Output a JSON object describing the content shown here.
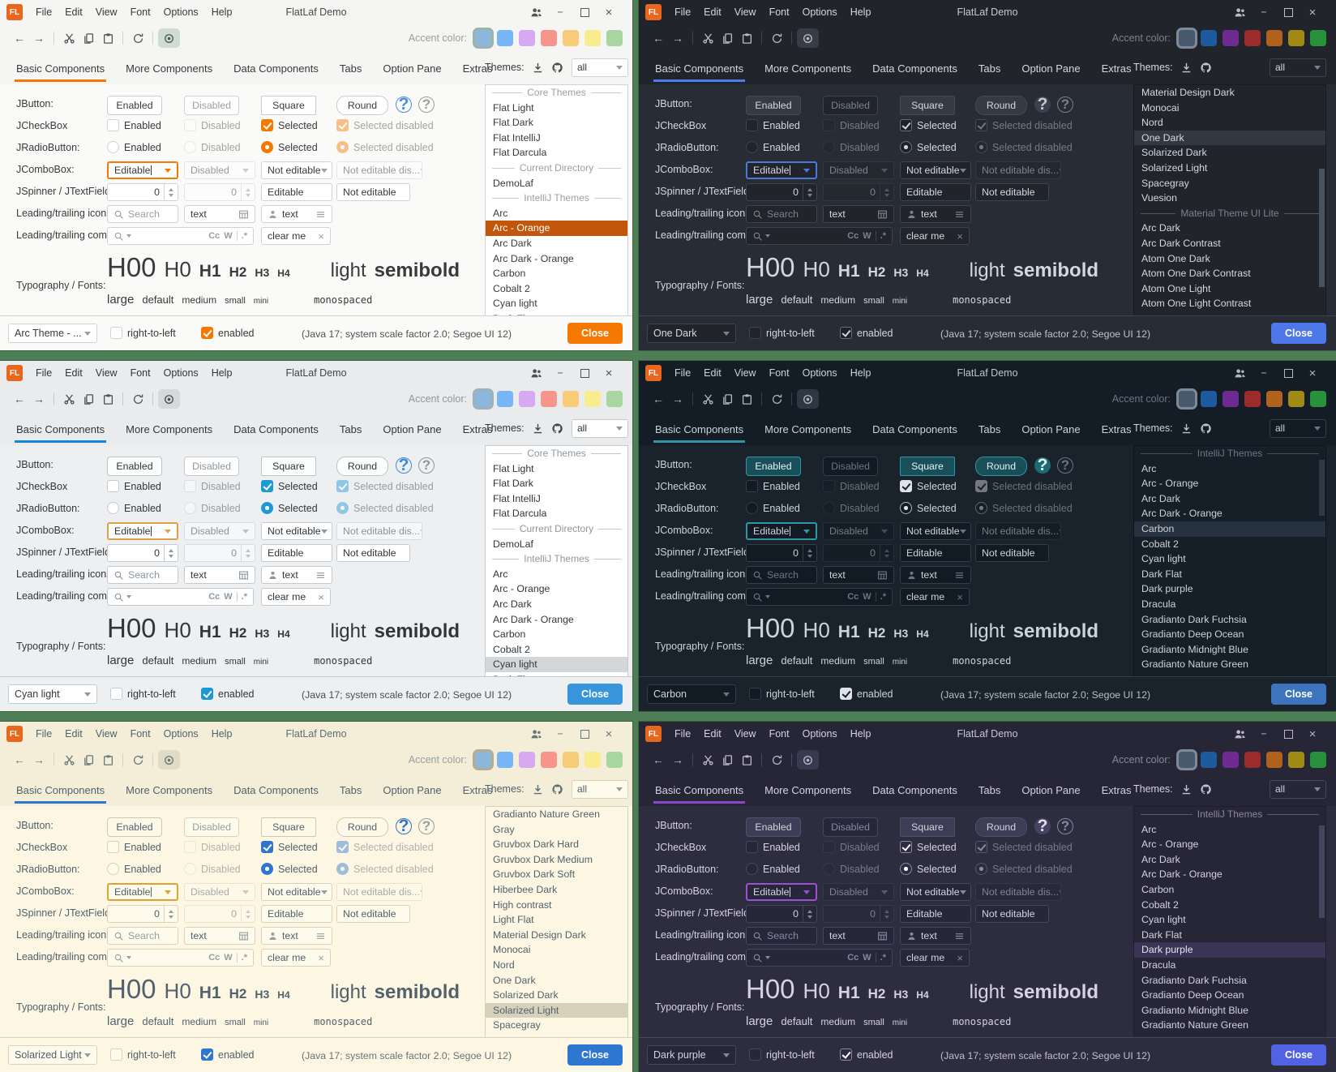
{
  "shared": {
    "logo": "FL",
    "title": "FlatLaf Demo",
    "menus": [
      "File",
      "Edit",
      "View",
      "Font",
      "Options",
      "Help"
    ],
    "toolbar": {
      "accent_label": "Accent color:"
    },
    "tabs": [
      "Basic Components",
      "More Components",
      "Data Components",
      "Tabs",
      "Option Pane",
      "Extras"
    ],
    "themes_label": "Themes:",
    "filter_value": "all",
    "help_glyph": "?",
    "glyphs": {
      "arrow_left": "←",
      "arrow_right": "→",
      "cut": "✂",
      "minimize": "−",
      "close": "×",
      "clear_x": "×"
    },
    "swatches": {
      "light": [
        "#8cb6da",
        "#77b5f7",
        "#d7a9f2",
        "#f7958d",
        "#f8cb79",
        "#f9ec8f",
        "#a7d6a0"
      ],
      "dark": [
        "#48596d",
        "#1d5a9e",
        "#6e2b91",
        "#9c2b2b",
        "#b0611b",
        "#a08c14",
        "#27913c"
      ]
    },
    "rows": {
      "jbutton": {
        "label": "JButton:",
        "buttons": [
          "Enabled",
          "Disabled",
          "Square",
          "Round"
        ]
      },
      "jcheckbox": {
        "label": "JCheckBox",
        "items": [
          "Enabled",
          "Disabled",
          "Selected",
          "Selected disabled"
        ]
      },
      "jradio": {
        "label": "JRadioButton:",
        "items": [
          "Enabled",
          "Disabled",
          "Selected",
          "Selected disabled"
        ]
      },
      "jcombo": {
        "label": "JComboBox:",
        "items": [
          "Editable",
          "Disabled",
          "Not editable",
          "Not editable dis..."
        ]
      },
      "jspinner": {
        "label": "JSpinner / JTextField:",
        "value": "0",
        "field1": "Editable",
        "field2": "Not editable"
      },
      "icons_row": {
        "label": "Leading/trailing icons:",
        "search_placeholder": "Search",
        "text1": "text",
        "text2": "text"
      },
      "comp_row": {
        "label": "Leading/trailing comp.:",
        "match_case": "Cc",
        "words": "W",
        "regex": ".*",
        "clear": "clear me"
      },
      "typography": {
        "label": "Typography / Fonts:",
        "headings": [
          "H00",
          "H0",
          "H1",
          "H2",
          "H3",
          "H4"
        ],
        "weights": [
          "light",
          "semibold"
        ],
        "sizes": [
          "large",
          "default",
          "medium",
          "small",
          "mini"
        ],
        "mono": "monospaced"
      }
    },
    "bottom": {
      "rtl": "right-to-left",
      "enabled": "enabled",
      "info": "(Java 17;  system scale factor 2.0; Segoe UI 12)",
      "close": "Close"
    }
  },
  "windows": [
    {
      "id": "arc-orange",
      "theme_value": "Arc Theme - ...",
      "swatch_set": "light",
      "colors": {
        "bg": "#fafaf9",
        "tb": "#f5f5f4",
        "tx": "#3a3a3a",
        "mut": "#9e9e9e",
        "bd": "#d2d2d0",
        "fld": "#ffffff",
        "btn": "#ffffff",
        "btnbd": "#cccccb",
        "foc": "#f57900",
        "tab": "#f57900",
        "cbg": "#f57900",
        "cmk": "#ffffff",
        "cbd": "#f57900",
        "rbg": "#f57900",
        "rdt": "#ffffff",
        "rbd": "#f57900",
        "selbg": "#c2570c",
        "selfg": "#ffffff",
        "lbg": "#ffffff",
        "lbd": "#d2d2d0",
        "eye": "#c9d8cf",
        "clbg": "#f57900",
        "clfg": "#ffffff",
        "hbg": "transparent",
        "hbd": "#4c8fdd",
        "hfg": "#4c8fdd",
        "thm": "#c8c8c6",
        "ring": "#9bb3ab"
      },
      "list": [
        {
          "sep": "Core Themes"
        },
        {
          "label": "Flat Light"
        },
        {
          "label": "Flat Dark"
        },
        {
          "label": "Flat IntelliJ"
        },
        {
          "label": "Flat Darcula"
        },
        {
          "sep": "Current Directory"
        },
        {
          "label": "DemoLaf"
        },
        {
          "sep": "IntelliJ Themes"
        },
        {
          "label": "Arc"
        },
        {
          "label": "Arc - Orange",
          "selected": true
        },
        {
          "label": "Arc Dark"
        },
        {
          "label": "Arc Dark - Orange"
        },
        {
          "label": "Carbon"
        },
        {
          "label": "Cobalt 2"
        },
        {
          "label": "Cyan light"
        },
        {
          "label": "Dark Flat"
        }
      ],
      "scrollbar": null
    },
    {
      "id": "one-dark",
      "theme_value": "One Dark",
      "swatch_set": "dark",
      "colors": {
        "bg": "#282c34",
        "tb": "#21252b",
        "tx": "#d3d8e0",
        "mut": "#7b818d",
        "bd": "#3d4450",
        "fld": "#21252b",
        "btn": "#353b45",
        "btnbd": "#404a5a",
        "foc": "#4c78d8",
        "tab": "#4a7cf0",
        "cbg": "#1d2128",
        "cmk": "#cfd4dc",
        "cbd": "#666e7e",
        "rbg": "#1d2128",
        "rdt": "#cfd4dc",
        "rbd": "#666e7e",
        "selbg": "#323842",
        "selfg": "#d3d8e0",
        "lbg": "#21252b",
        "lbd": "#181a1f",
        "eye": "#3b414d",
        "clbg": "#4e78ea",
        "clfg": "#ffffff",
        "hbg": "#3b414d",
        "hfg": "#c3c9d4",
        "thm": "#4a5260",
        "ring": "#7e8a99"
      },
      "list": [
        {
          "label": "Material Design Dark"
        },
        {
          "label": "Monocai"
        },
        {
          "label": "Nord"
        },
        {
          "label": "One Dark",
          "selected": true
        },
        {
          "label": "Solarized Dark"
        },
        {
          "label": "Solarized Light"
        },
        {
          "label": "Spacegray"
        },
        {
          "label": "Vuesion"
        },
        {
          "sep": "Material Theme UI Lite"
        },
        {
          "label": "Arc Dark"
        },
        {
          "label": "Arc Dark Contrast"
        },
        {
          "label": "Atom One Dark"
        },
        {
          "label": "Atom One Dark Contrast"
        },
        {
          "label": "Atom One Light"
        },
        {
          "label": "Atom One Light Contrast"
        }
      ],
      "scrollbar": {
        "top_pct": 36,
        "height_pct": 51
      }
    },
    {
      "id": "cyan-light",
      "theme_value": "Cyan light",
      "swatch_set": "light",
      "colors": {
        "bg": "#edeff1",
        "tb": "#e9ebed",
        "tx": "#30363a",
        "mut": "#8f979c",
        "bd": "#c4cbd0",
        "fld": "#ffffff",
        "btn": "#fcfdfd",
        "btnbd": "#bcc4ca",
        "foc": "#dfa048",
        "tab": "#1286d8",
        "cbg": "#1c99d5",
        "cmk": "#ffffff",
        "cbd": "#1c99d5",
        "rbg": "#1c99d5",
        "rdt": "#ffffff",
        "rbd": "#1c99d5",
        "selbg": "#d4d7d9",
        "selfg": "#30363a",
        "lbg": "#ffffff",
        "lbd": "#c4cbd0",
        "eye": "#d2d6d9",
        "clbg": "#3895dc",
        "clfg": "#ffffff",
        "hbg": "transparent",
        "hbd": "#3d8ed8",
        "hfg": "#3d8ed8",
        "thm": "#c4cbd0",
        "ring": "#9fb0b8"
      },
      "list": [
        {
          "sep": "Core Themes"
        },
        {
          "label": "Flat Light"
        },
        {
          "label": "Flat Dark"
        },
        {
          "label": "Flat IntelliJ"
        },
        {
          "label": "Flat Darcula"
        },
        {
          "sep": "Current Directory"
        },
        {
          "label": "DemoLaf"
        },
        {
          "sep": "IntelliJ Themes"
        },
        {
          "label": "Arc"
        },
        {
          "label": "Arc - Orange"
        },
        {
          "label": "Arc Dark"
        },
        {
          "label": "Arc Dark - Orange"
        },
        {
          "label": "Carbon"
        },
        {
          "label": "Cobalt 2"
        },
        {
          "label": "Cyan light",
          "selected": true
        },
        {
          "label": "Dark Flat"
        }
      ],
      "scrollbar": null
    },
    {
      "id": "carbon",
      "theme_value": "Carbon",
      "swatch_set": "dark",
      "colors": {
        "bg": "#1a222c",
        "tb": "#141c25",
        "tx": "#ccd3da",
        "mut": "#6b7683",
        "bd": "#333e49",
        "fld": "#121a23",
        "btn": "#184f58",
        "btnbd": "#2e97a2",
        "btnfg": "#e8f2f4",
        "foc": "#2e97a2",
        "tab": "#2e97a2",
        "cbg": "#dde3e8",
        "cmk": "#16202a",
        "cbd": "#dde3e8",
        "rbg": "#121a23",
        "rdt": "#dde3e8",
        "rbd": "#aab5bf",
        "selbg": "#273240",
        "selfg": "#ccd3da",
        "lbg": "#161e28",
        "lbd": "#0e141c",
        "eye": "#333d48",
        "clbg": "#3e74be",
        "clfg": "#ffffff",
        "hbg": "#1d6a74",
        "hfg": "#e2f4f6",
        "thm": "#2e3a46",
        "ring": "#7e8a99"
      },
      "list": [
        {
          "sep": "IntelliJ Themes"
        },
        {
          "label": "Arc"
        },
        {
          "label": "Arc - Orange"
        },
        {
          "label": "Arc Dark"
        },
        {
          "label": "Arc Dark - Orange"
        },
        {
          "label": "Carbon",
          "selected": true
        },
        {
          "label": "Cobalt 2"
        },
        {
          "label": "Cyan light"
        },
        {
          "label": "Dark Flat"
        },
        {
          "label": "Dark purple"
        },
        {
          "label": "Dracula"
        },
        {
          "label": "Gradianto Dark Fuchsia"
        },
        {
          "label": "Gradianto Deep Ocean"
        },
        {
          "label": "Gradianto Midnight Blue"
        },
        {
          "label": "Gradianto Nature Green"
        }
      ],
      "scrollbar": {
        "top_pct": 6,
        "height_pct": 24
      }
    },
    {
      "id": "solarized-light",
      "theme_value": "Solarized Light",
      "swatch_set": "light",
      "colors": {
        "bg": "#fdf6e3",
        "tb": "#f4eed9",
        "tx": "#51626c",
        "mut": "#96a0a0",
        "bd": "#d9d2b8",
        "fld": "#fefaec",
        "btn": "#fdf8e8",
        "btnbd": "#cfc8ac",
        "foc": "#d9a430",
        "tab": "#2e77d0",
        "cbg": "#2e77d0",
        "cmk": "#ffffff",
        "cbd": "#2e77d0",
        "rbg": "#2e77d0",
        "rdt": "#ffffff",
        "rbd": "#2e77d0",
        "selbg": "#d7d1bc",
        "selfg": "#51626c",
        "lbg": "#fdf6e3",
        "lbd": "#d9d2b8",
        "eye": "#ded7c2",
        "clbg": "#2e77d0",
        "clfg": "#ffffff",
        "hbg": "transparent",
        "hbd": "#2e77d0",
        "hfg": "#2e77d0",
        "thm": "#d3ccb2",
        "ring": "#b3ac94"
      },
      "list": [
        {
          "label": "Gradianto Nature Green"
        },
        {
          "label": "Gray"
        },
        {
          "label": "Gruvbox Dark Hard"
        },
        {
          "label": "Gruvbox Dark Medium"
        },
        {
          "label": "Gruvbox Dark Soft"
        },
        {
          "label": "Hiberbee Dark"
        },
        {
          "label": "High contrast"
        },
        {
          "label": "Light Flat"
        },
        {
          "label": "Material Design Dark"
        },
        {
          "label": "Monocai"
        },
        {
          "label": "Nord"
        },
        {
          "label": "One Dark"
        },
        {
          "label": "Solarized Dark"
        },
        {
          "label": "Solarized Light",
          "selected": true
        },
        {
          "label": "Spacegray"
        }
      ],
      "scrollbar": null
    },
    {
      "id": "dark-purple",
      "theme_value": "Dark purple",
      "swatch_set": "dark",
      "colors": {
        "bg": "#2d2d3f",
        "tb": "#262637",
        "tx": "#d5d2e2",
        "mut": "#8a86a0",
        "bd": "#46465e",
        "fld": "#27273a",
        "btn": "#3d3d55",
        "btnbd": "#50506c",
        "foc": "#9a4fd8",
        "tab": "#9045c8",
        "cbg": "#2d2d3f",
        "cmk": "#ffffff",
        "cbd": "#8d86a8",
        "rbg": "#2d2d3f",
        "rdt": "#ffffff",
        "rbd": "#8d86a8",
        "selbg": "#3b3455",
        "selfg": "#e6e2f2",
        "lbg": "#262637",
        "lbd": "#1d1d2c",
        "eye": "#3d3d55",
        "clbg": "#5163e2",
        "clfg": "#ffffff",
        "hbg": "#454360",
        "hfg": "#e0dcf0",
        "thm": "#45455f",
        "ring": "#7e8a99"
      },
      "list": [
        {
          "sep": "IntelliJ Themes"
        },
        {
          "label": "Arc"
        },
        {
          "label": "Arc - Orange"
        },
        {
          "label": "Arc Dark"
        },
        {
          "label": "Arc Dark - Orange"
        },
        {
          "label": "Carbon"
        },
        {
          "label": "Cobalt 2"
        },
        {
          "label": "Cyan light"
        },
        {
          "label": "Dark Flat"
        },
        {
          "label": "Dark purple",
          "selected": true
        },
        {
          "label": "Dracula"
        },
        {
          "label": "Gradianto Dark Fuchsia"
        },
        {
          "label": "Gradianto Deep Ocean"
        },
        {
          "label": "Gradianto Midnight Blue"
        },
        {
          "label": "Gradianto Nature Green"
        }
      ],
      "scrollbar": {
        "top_pct": 8,
        "height_pct": 40
      }
    }
  ]
}
